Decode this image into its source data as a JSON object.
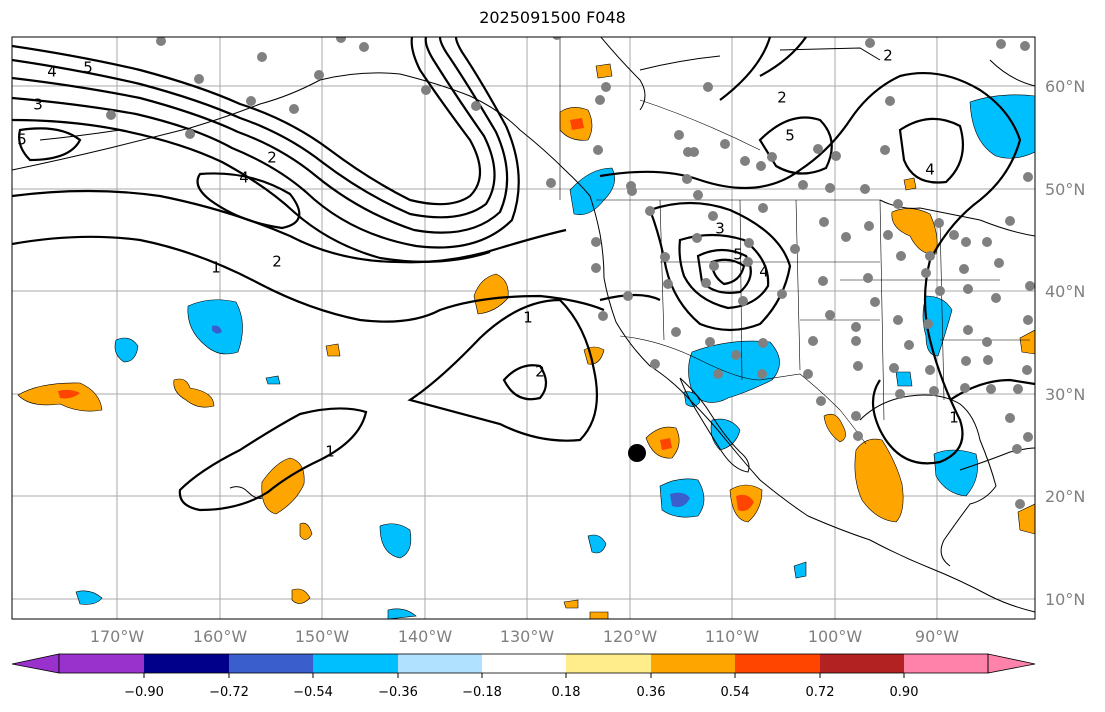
{
  "title": "2025091500 F048",
  "lat_labels": [
    "60°N",
    "50°N",
    "40°N",
    "30°N",
    "20°N",
    "10°N"
  ],
  "lon_labels": [
    "170°W",
    "160°W",
    "150°W",
    "140°W",
    "130°W",
    "120°W",
    "110°W",
    "100°W",
    "90°W"
  ],
  "colorbar": {
    "colors": [
      "#9932CC",
      "#00008B",
      "#3A5FCD",
      "#00BFFF",
      "#B0E2FF",
      "#FFFFFF",
      "#FFEC8B",
      "#FFA500",
      "#FF4500",
      "#B22222",
      "#FF82AB"
    ],
    "tick_labels": [
      "−0.90",
      "−0.72",
      "−0.54",
      "−0.36",
      "−0.18",
      "0.18",
      "0.36",
      "0.54",
      "0.72",
      "0.90"
    ]
  },
  "contour_labels": [
    "5",
    "4",
    "3",
    "2",
    "1",
    "2",
    "4",
    "1",
    "2",
    "1",
    "3",
    "5",
    "4",
    "2",
    "5",
    "4",
    "2",
    "1",
    "5"
  ],
  "colors": {
    "grid": "#aaaaaa",
    "station": "#808080",
    "contour": "#000000"
  }
}
